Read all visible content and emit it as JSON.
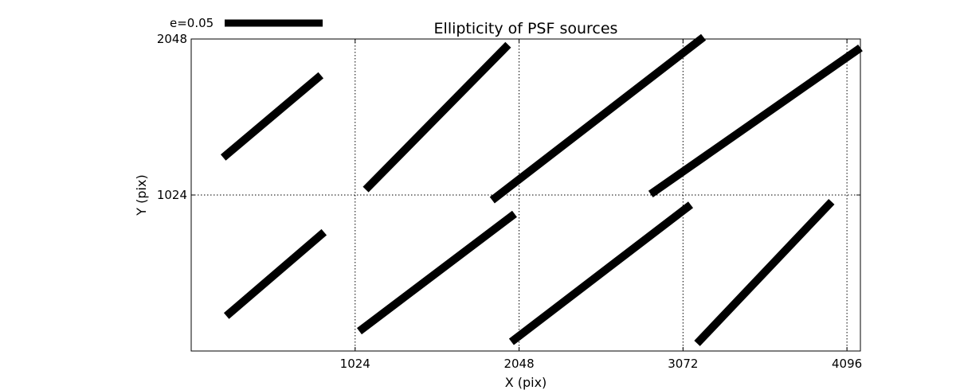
{
  "chart_data": {
    "type": "quiver",
    "title": "Ellipticity of PSF sources",
    "xlabel": "X (pix)",
    "ylabel": "Y (pix)",
    "xlim": [
      0,
      4180
    ],
    "ylim": [
      0,
      2048
    ],
    "xticks": [
      1024,
      2048,
      3072,
      4096
    ],
    "yticks": [
      1024,
      2048
    ],
    "xtick_labels": [
      "1024",
      "2048",
      "3072",
      "4096"
    ],
    "ytick_labels": [
      "1024",
      "2048"
    ],
    "grid": "dotted",
    "legend": {
      "label": "e=0.05",
      "position": "top-left, above axes"
    },
    "line_color": "#000000",
    "segments": [
      {
        "x1": 220,
        "y1": 230,
        "x2": 830,
        "y2": 780
      },
      {
        "x1": 200,
        "y1": 1270,
        "x2": 810,
        "y2": 1810
      },
      {
        "x1": 1050,
        "y1": 130,
        "x2": 2020,
        "y2": 900
      },
      {
        "x1": 1090,
        "y1": 1060,
        "x2": 1980,
        "y2": 2010
      },
      {
        "x1": 2000,
        "y1": 60,
        "x2": 3120,
        "y2": 960
      },
      {
        "x1": 1880,
        "y1": 990,
        "x2": 3200,
        "y2": 2060
      },
      {
        "x1": 3160,
        "y1": 50,
        "x2": 4000,
        "y2": 980
      },
      {
        "x1": 2870,
        "y1": 1030,
        "x2": 4180,
        "y2": 1990
      }
    ]
  }
}
